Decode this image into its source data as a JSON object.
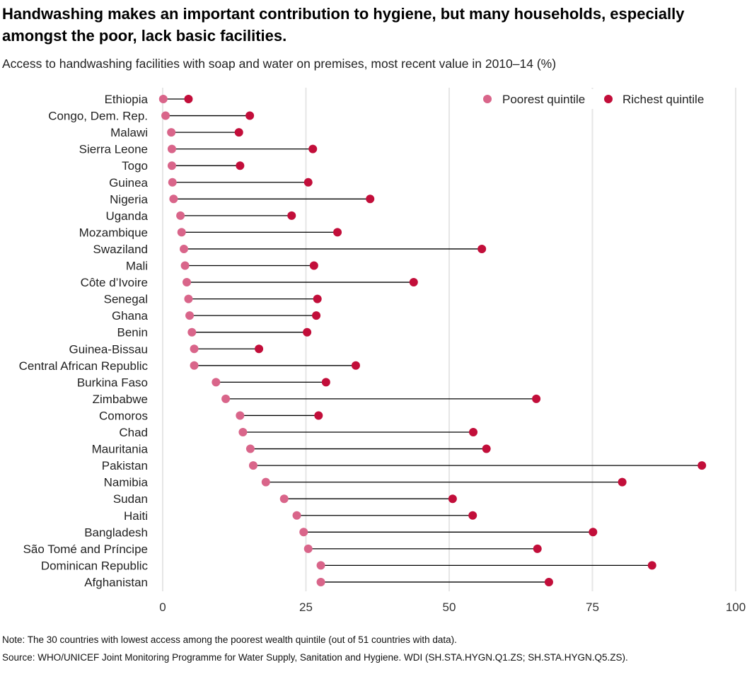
{
  "title": "Handwashing makes an important contribution to hygiene, but many households, especially amongst the poor, lack basic facilities.",
  "subtitle": "Access to handwashing facilities with soap and water on premises, most recent value in 2010–14 (%)",
  "note": "Note: The 30 countries with lowest access among the poorest wealth quintile (out of 51 countries with data).",
  "source": "Source: WHO/UNICEF Joint Monitoring Programme for Water Supply, Sanitation and Hygiene. WDI (SH.STA.HYGN.Q1.ZS; SH.STA.HYGN.Q5.ZS).",
  "colors": {
    "poorest": "#d9658a",
    "richest": "#c20e3a",
    "connector": "#000000",
    "grid": "#e6e6e6"
  },
  "chart_data": {
    "type": "dumbbell",
    "xlim": [
      0,
      100
    ],
    "xticks": [
      0,
      25,
      50,
      75,
      100
    ],
    "grid": true,
    "legend_position": "top-right",
    "categories": [
      "Ethiopia",
      "Congo, Dem. Rep.",
      "Malawi",
      "Sierra Leone",
      "Togo",
      "Guinea",
      "Nigeria",
      "Uganda",
      "Mozambique",
      "Swaziland",
      "Mali",
      "Côte d’Ivoire",
      "Senegal",
      "Ghana",
      "Benin",
      "Guinea-Bissau",
      "Central African Republic",
      "Burkina Faso",
      "Zimbabwe",
      "Comoros",
      "Chad",
      "Mauritania",
      "Pakistan",
      "Namibia",
      "Sudan",
      "Haiti",
      "Bangladesh",
      "São Tomé and Príncipe",
      "Dominican Republic",
      "Afghanistan"
    ],
    "series": [
      {
        "name": "Poorest quintile",
        "values": [
          0.1,
          0.5,
          1.5,
          1.6,
          1.6,
          1.7,
          1.9,
          3.1,
          3.3,
          3.7,
          3.9,
          4.2,
          4.5,
          4.7,
          5.1,
          5.5,
          5.5,
          9.3,
          11.0,
          13.5,
          14.0,
          15.3,
          15.8,
          18.0,
          21.2,
          23.4,
          24.6,
          25.4,
          27.6,
          27.6
        ]
      },
      {
        "name": "Richest quintile",
        "values": [
          4.5,
          15.2,
          13.3,
          26.2,
          13.5,
          25.4,
          36.2,
          22.5,
          30.5,
          55.7,
          26.4,
          43.8,
          27.0,
          26.8,
          25.2,
          16.8,
          33.7,
          28.5,
          65.2,
          27.2,
          54.2,
          56.5,
          94.1,
          80.2,
          50.6,
          54.1,
          75.1,
          65.4,
          85.4,
          67.4
        ]
      }
    ]
  }
}
